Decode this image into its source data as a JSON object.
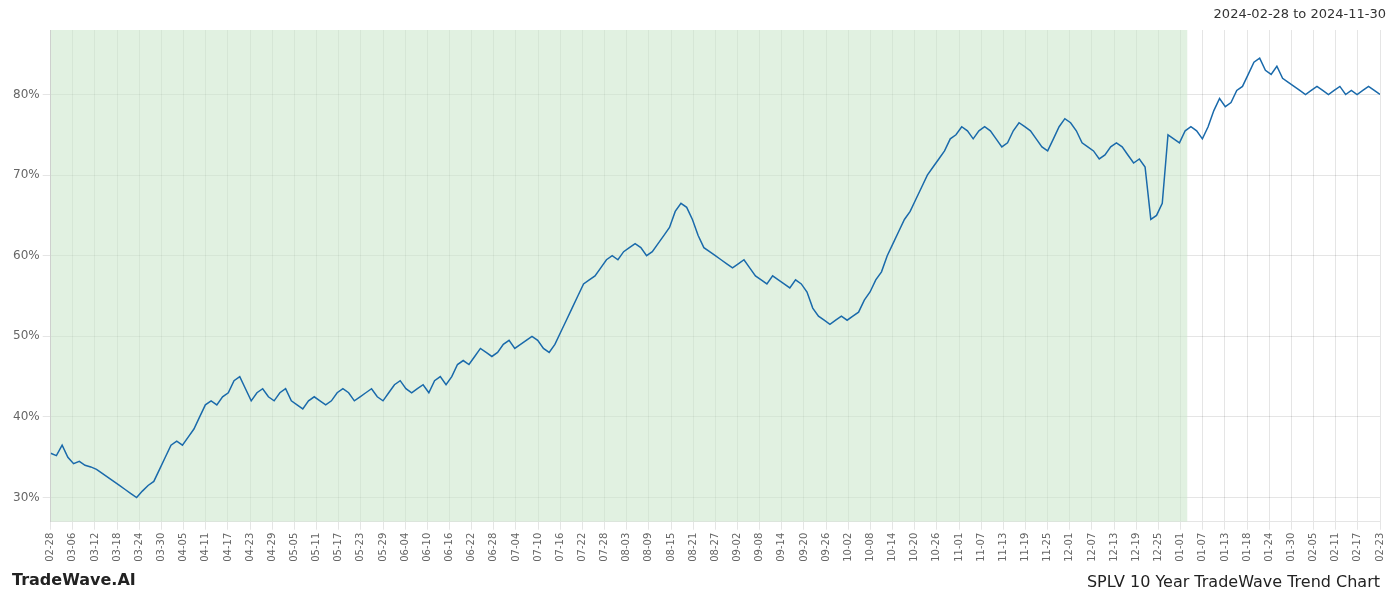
{
  "chart_data": {
    "type": "line",
    "title": "SPLV 10 Year TradeWave Trend Chart",
    "annotations": [
      "2024-02-28 to 2024-11-30",
      "TradeWave.AI"
    ],
    "color": "#1a6aab",
    "grid": true,
    "spans": [
      {
        "from": 0,
        "to": 198.36,
        "color": "#c8e6c8"
      }
    ],
    "xlim": [
      0,
      232
    ],
    "xticks": [
      {
        "value": 0,
        "label": "02-28"
      },
      {
        "value": 3.8667,
        "label": "03-06"
      },
      {
        "value": 7.7333,
        "label": "03-12"
      },
      {
        "value": 11.6,
        "label": "03-18"
      },
      {
        "value": 15.4667,
        "label": "03-24"
      },
      {
        "value": 19.3333,
        "label": "03-30"
      },
      {
        "value": 23.2,
        "label": "04-05"
      },
      {
        "value": 27.0667,
        "label": "04-11"
      },
      {
        "value": 30.9333,
        "label": "04-17"
      },
      {
        "value": 34.8,
        "label": "04-23"
      },
      {
        "value": 38.6667,
        "label": "04-29"
      },
      {
        "value": 42.5333,
        "label": "05-05"
      },
      {
        "value": 46.4,
        "label": "05-11"
      },
      {
        "value": 50.2667,
        "label": "05-17"
      },
      {
        "value": 54.1333,
        "label": "05-23"
      },
      {
        "value": 58,
        "label": "05-29"
      },
      {
        "value": 61.8667,
        "label": "06-04"
      },
      {
        "value": 65.7333,
        "label": "06-10"
      },
      {
        "value": 69.6,
        "label": "06-16"
      },
      {
        "value": 73.4667,
        "label": "06-22"
      },
      {
        "value": 77.3333,
        "label": "06-28"
      },
      {
        "value": 81.2,
        "label": "07-04"
      },
      {
        "value": 85.0667,
        "label": "07-10"
      },
      {
        "value": 88.9333,
        "label": "07-16"
      },
      {
        "value": 92.8,
        "label": "07-22"
      },
      {
        "value": 96.6667,
        "label": "07-28"
      },
      {
        "value": 100.5333,
        "label": "08-03"
      },
      {
        "value": 104.4,
        "label": "08-09"
      },
      {
        "value": 108.2667,
        "label": "08-15"
      },
      {
        "value": 112.1333,
        "label": "08-21"
      },
      {
        "value": 116,
        "label": "08-27"
      },
      {
        "value": 119.8667,
        "label": "09-02"
      },
      {
        "value": 123.7333,
        "label": "09-08"
      },
      {
        "value": 127.6,
        "label": "09-14"
      },
      {
        "value": 131.4667,
        "label": "09-20"
      },
      {
        "value": 135.3333,
        "label": "09-26"
      },
      {
        "value": 139.2,
        "label": "10-02"
      },
      {
        "value": 143.0667,
        "label": "10-08"
      },
      {
        "value": 146.9333,
        "label": "10-14"
      },
      {
        "value": 150.8,
        "label": "10-20"
      },
      {
        "value": 154.6667,
        "label": "10-26"
      },
      {
        "value": 158.5333,
        "label": "11-01"
      },
      {
        "value": 162.4,
        "label": "11-07"
      },
      {
        "value": 166.2667,
        "label": "11-13"
      },
      {
        "value": 170.1333,
        "label": "11-19"
      },
      {
        "value": 174,
        "label": "11-25"
      },
      {
        "value": 177.8667,
        "label": "12-01"
      },
      {
        "value": 181.7333,
        "label": "12-07"
      },
      {
        "value": 185.6,
        "label": "12-13"
      },
      {
        "value": 189.4667,
        "label": "12-19"
      },
      {
        "value": 193.3333,
        "label": "12-25"
      },
      {
        "value": 197.2,
        "label": "01-01"
      },
      {
        "value": 201.0667,
        "label": "01-07"
      },
      {
        "value": 204.9333,
        "label": "01-13"
      },
      {
        "value": 208.8,
        "label": "01-18"
      },
      {
        "value": 212.6667,
        "label": "01-24"
      },
      {
        "value": 216.5333,
        "label": "01-30"
      },
      {
        "value": 220.4,
        "label": "02-05"
      },
      {
        "value": 224.2667,
        "label": "02-11"
      },
      {
        "value": 228.1333,
        "label": "02-17"
      },
      {
        "value": 232,
        "label": "02-23"
      }
    ],
    "ylim": [
      27,
      88
    ],
    "yticks": [
      {
        "value": 30,
        "label": "30%"
      },
      {
        "value": 40,
        "label": "40%"
      },
      {
        "value": 50,
        "label": "50%"
      },
      {
        "value": 60,
        "label": "60%"
      },
      {
        "value": 70,
        "label": "70%"
      },
      {
        "value": 80,
        "label": "80%"
      }
    ],
    "values": [
      35.5,
      35.2,
      36.5,
      35.0,
      34.2,
      34.5,
      34.0,
      33.8,
      33.5,
      33.0,
      32.5,
      32.0,
      31.5,
      31.0,
      30.5,
      30.0,
      30.8,
      31.5,
      32.0,
      33.5,
      35.0,
      36.5,
      37.0,
      36.5,
      37.5,
      38.5,
      40.0,
      41.5,
      42.0,
      41.5,
      42.5,
      43.0,
      44.5,
      45.0,
      43.5,
      42.0,
      43.0,
      43.5,
      42.5,
      42.0,
      43.0,
      43.5,
      42.0,
      41.5,
      41.0,
      42.0,
      42.5,
      42.0,
      41.5,
      42.0,
      43.0,
      43.5,
      43.0,
      42.0,
      42.5,
      43.0,
      43.5,
      42.5,
      42.0,
      43.0,
      44.0,
      44.5,
      43.5,
      43.0,
      43.5,
      44.0,
      43.0,
      44.5,
      45.0,
      44.0,
      45.0,
      46.5,
      47.0,
      46.5,
      47.5,
      48.5,
      48.0,
      47.5,
      48.0,
      49.0,
      49.5,
      48.5,
      49.0,
      49.5,
      50.0,
      49.5,
      48.5,
      48.0,
      49.0,
      50.5,
      52.0,
      53.5,
      55.0,
      56.5,
      57.0,
      57.5,
      58.5,
      59.5,
      60.0,
      59.5,
      60.5,
      61.0,
      61.5,
      61.0,
      60.0,
      60.5,
      61.5,
      62.5,
      63.5,
      65.5,
      66.5,
      66.0,
      64.5,
      62.5,
      61.0,
      60.5,
      60.0,
      59.5,
      59.0,
      58.5,
      59.0,
      59.5,
      58.5,
      57.5,
      57.0,
      56.5,
      57.5,
      57.0,
      56.5,
      56.0,
      57.0,
      56.5,
      55.5,
      53.5,
      52.5,
      52.0,
      51.5,
      52.0,
      52.5,
      52.0,
      52.5,
      53.0,
      54.5,
      55.5,
      57.0,
      58.0,
      60.0,
      61.5,
      63.0,
      64.5,
      65.5,
      67.0,
      68.5,
      70.0,
      71.0,
      72.0,
      73.0,
      74.5,
      75.0,
      76.0,
      75.5,
      74.5,
      75.5,
      76.0,
      75.5,
      74.5,
      73.5,
      74.0,
      75.5,
      76.5,
      76.0,
      75.5,
      74.5,
      73.5,
      73.0,
      74.5,
      76.0,
      77.0,
      76.5,
      75.5,
      74.0,
      73.5,
      73.0,
      72.0,
      72.5,
      73.5,
      74.0,
      73.5,
      72.5,
      71.5,
      72.0,
      71.0,
      64.5,
      65.0,
      66.5,
      75.0,
      74.5,
      74.0,
      75.5,
      76.0,
      75.5,
      74.5,
      76.0,
      78.0,
      79.5,
      78.5,
      79.0,
      80.5,
      81.0,
      82.5,
      84.0,
      84.5,
      83.0,
      82.5,
      83.5,
      82.0,
      81.5,
      81.0,
      80.5,
      80.0,
      80.5,
      81.0,
      80.5,
      80.0,
      80.5,
      81.0,
      80.0,
      80.5,
      80.0,
      80.5,
      81.0,
      80.5,
      80.0
    ]
  }
}
